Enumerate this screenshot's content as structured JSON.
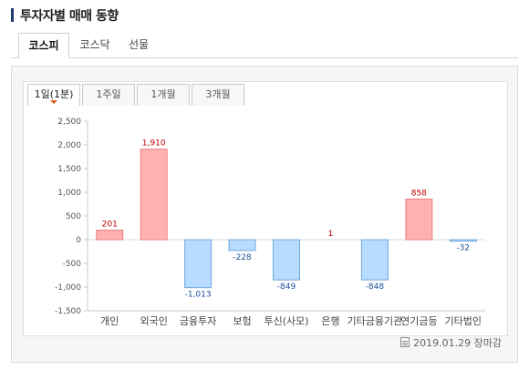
{
  "header": {
    "title": "투자자별 매매 동향"
  },
  "market_tabs": [
    {
      "label": "코스피",
      "active": true
    },
    {
      "label": "코스닥",
      "active": false
    },
    {
      "label": "선물",
      "active": false
    }
  ],
  "period_tabs": [
    {
      "label": "1일(1분)",
      "active": true
    },
    {
      "label": "1주일",
      "active": false
    },
    {
      "label": "1개월",
      "active": false
    },
    {
      "label": "3개월",
      "active": false
    }
  ],
  "footer": {
    "date": "2019.01.29",
    "status": "장마감"
  },
  "colors": {
    "positive_fill": "#ffb0b0",
    "positive_stroke": "#f08080",
    "negative_fill": "#b8dcff",
    "negative_stroke": "#6fa8dc",
    "positive_label": "#c00000",
    "negative_label": "#1a4f9c"
  },
  "chart_data": {
    "type": "bar",
    "categories": [
      "개인",
      "외국인",
      "금융투자",
      "보험",
      "투신(사모)",
      "은행",
      "기타금융기관",
      "연기금등",
      "기타법인"
    ],
    "values": [
      201,
      1910,
      -1013,
      -228,
      -849,
      1,
      -848,
      858,
      -32
    ],
    "data_labels": [
      "201",
      "1,910",
      "-1,013",
      "-228",
      "-849",
      "1",
      "-848",
      "858",
      "-32"
    ],
    "ylim": [
      -1500,
      2500
    ],
    "yticks": [
      2500,
      2000,
      1500,
      1000,
      500,
      0,
      -500,
      -1000,
      -1500
    ],
    "ytick_labels": [
      "2,500",
      "2,000",
      "1,500",
      "1,000",
      "500",
      "0",
      "-500",
      "-1,000",
      "-1,500"
    ],
    "grid": false
  }
}
